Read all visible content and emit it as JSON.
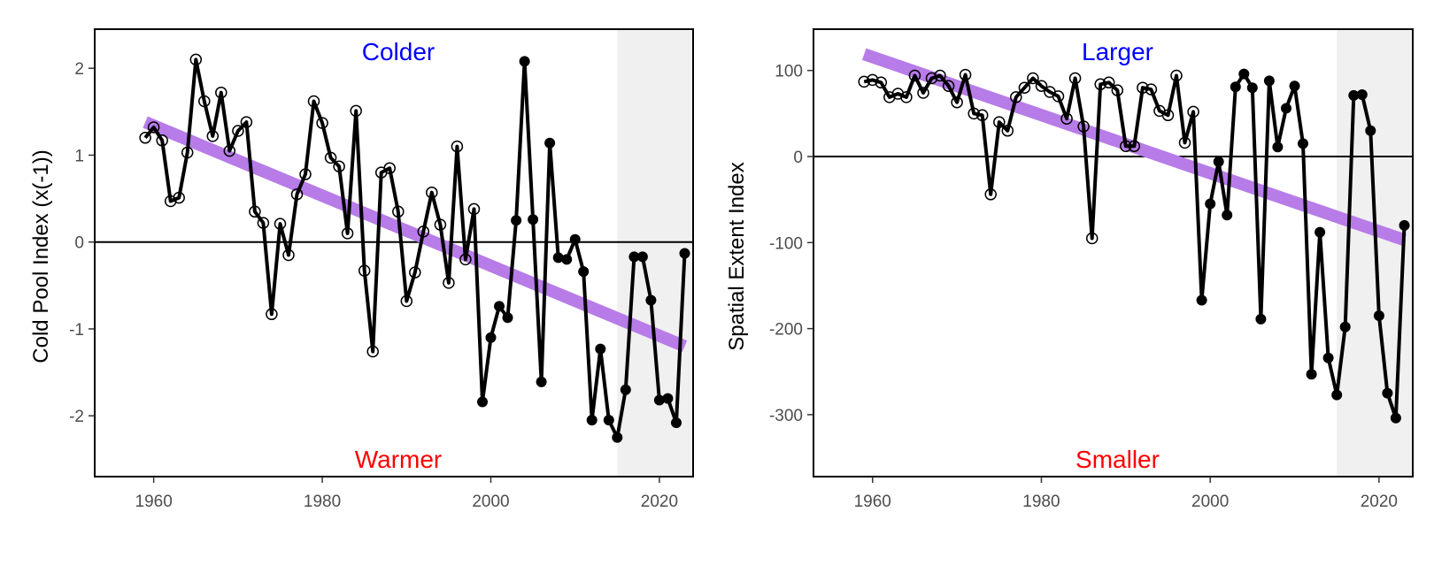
{
  "colors": {
    "trend": "#b77ce8",
    "annotation_top": "#0000ff",
    "annotation_bottom": "#ff0000",
    "shade": "#f0f0f0",
    "line": "#000000"
  },
  "chart_data": [
    {
      "type": "line",
      "xlabel": "",
      "ylabel": "Cold Pool Index (x(-1))",
      "annotations": {
        "top": "Colder",
        "bottom": "Warmer"
      },
      "xlim": [
        1953,
        2024
      ],
      "ylim": [
        -2.7,
        2.45
      ],
      "x_ticks": [
        1960,
        1980,
        2000,
        2020
      ],
      "y_ticks": [
        -2,
        -1,
        0,
        1,
        2
      ],
      "reference_line": 0,
      "shaded_period": [
        2015,
        2024
      ],
      "trend": {
        "x": [
          1959,
          2023
        ],
        "y": [
          1.38,
          -1.2
        ]
      },
      "open_marker_until": 1998,
      "series": [
        {
          "x": [
            1959,
            1960,
            1961,
            1962,
            1963,
            1964,
            1965,
            1966,
            1967,
            1968,
            1969,
            1970,
            1971,
            1972,
            1973,
            1974,
            1975,
            1976,
            1977,
            1978,
            1979,
            1980,
            1981,
            1982,
            1983,
            1984,
            1985,
            1986,
            1987,
            1988,
            1989,
            1990,
            1991,
            1992,
            1993,
            1994,
            1995,
            1996,
            1997,
            1998,
            1999,
            2000,
            2001,
            2002,
            2003,
            2004,
            2005,
            2006,
            2007,
            2008,
            2009,
            2010,
            2011,
            2012,
            2013,
            2014,
            2015,
            2016,
            2017,
            2018,
            2019,
            2020,
            2021,
            2022,
            2023
          ],
          "y": [
            1.2,
            1.32,
            1.17,
            0.47,
            0.51,
            1.03,
            2.1,
            1.62,
            1.22,
            1.72,
            1.05,
            1.28,
            1.38,
            0.35,
            0.22,
            -0.83,
            0.21,
            -0.15,
            0.55,
            0.78,
            1.62,
            1.37,
            0.97,
            0.87,
            0.1,
            1.51,
            -0.33,
            -1.26,
            0.8,
            0.85,
            0.35,
            -0.68,
            -0.35,
            0.12,
            0.57,
            0.2,
            -0.47,
            1.1,
            -0.2,
            0.38,
            -1.84,
            -1.1,
            -0.74,
            -0.87,
            0.25,
            2.08,
            0.26,
            -1.61,
            1.14,
            -0.18,
            -0.2,
            0.03,
            -0.34,
            -2.05,
            -1.23,
            -2.05,
            -2.25,
            -1.7,
            -0.17,
            -0.17,
            -0.67,
            -1.82,
            -1.8,
            -2.08,
            -0.13
          ]
        }
      ]
    },
    {
      "type": "line",
      "xlabel": "",
      "ylabel": "Spatial Extent Index",
      "annotations": {
        "top": "Larger",
        "bottom": "Smaller"
      },
      "xlim": [
        1953,
        2024
      ],
      "ylim": [
        -372,
        148
      ],
      "x_ticks": [
        1960,
        1980,
        2000,
        2020
      ],
      "y_ticks": [
        100,
        0,
        -100,
        -200,
        -300
      ],
      "reference_line": 0,
      "shaded_period": [
        2015,
        2024
      ],
      "trend": {
        "x": [
          1959,
          2023
        ],
        "y": [
          119,
          -97
        ]
      },
      "open_marker_until": 1998,
      "series": [
        {
          "x": [
            1959,
            1960,
            1961,
            1962,
            1963,
            1964,
            1965,
            1966,
            1967,
            1968,
            1969,
            1970,
            1971,
            1972,
            1973,
            1974,
            1975,
            1976,
            1977,
            1978,
            1979,
            1980,
            1981,
            1982,
            1983,
            1984,
            1985,
            1986,
            1987,
            1988,
            1989,
            1990,
            1991,
            1992,
            1993,
            1994,
            1995,
            1996,
            1997,
            1998,
            1999,
            2000,
            2001,
            2002,
            2003,
            2004,
            2005,
            2006,
            2007,
            2008,
            2009,
            2010,
            2011,
            2012,
            2013,
            2014,
            2015,
            2016,
            2017,
            2018,
            2019,
            2020,
            2021,
            2022,
            2023
          ],
          "y": [
            87,
            89,
            86,
            69,
            73,
            69,
            94,
            74,
            91,
            94,
            82,
            63,
            95,
            50,
            48,
            -44,
            40,
            30,
            69,
            80,
            91,
            82,
            75,
            70,
            44,
            91,
            35,
            -95,
            84,
            86,
            77,
            12,
            12,
            80,
            78,
            53,
            48,
            94,
            16,
            52,
            -167,
            -55,
            -6,
            -68,
            81,
            96,
            80,
            -189,
            88,
            11,
            56,
            82,
            15,
            -253,
            -88,
            -234,
            -277,
            -198,
            71,
            72,
            30,
            -185,
            -275,
            -304,
            -80
          ]
        }
      ]
    }
  ]
}
